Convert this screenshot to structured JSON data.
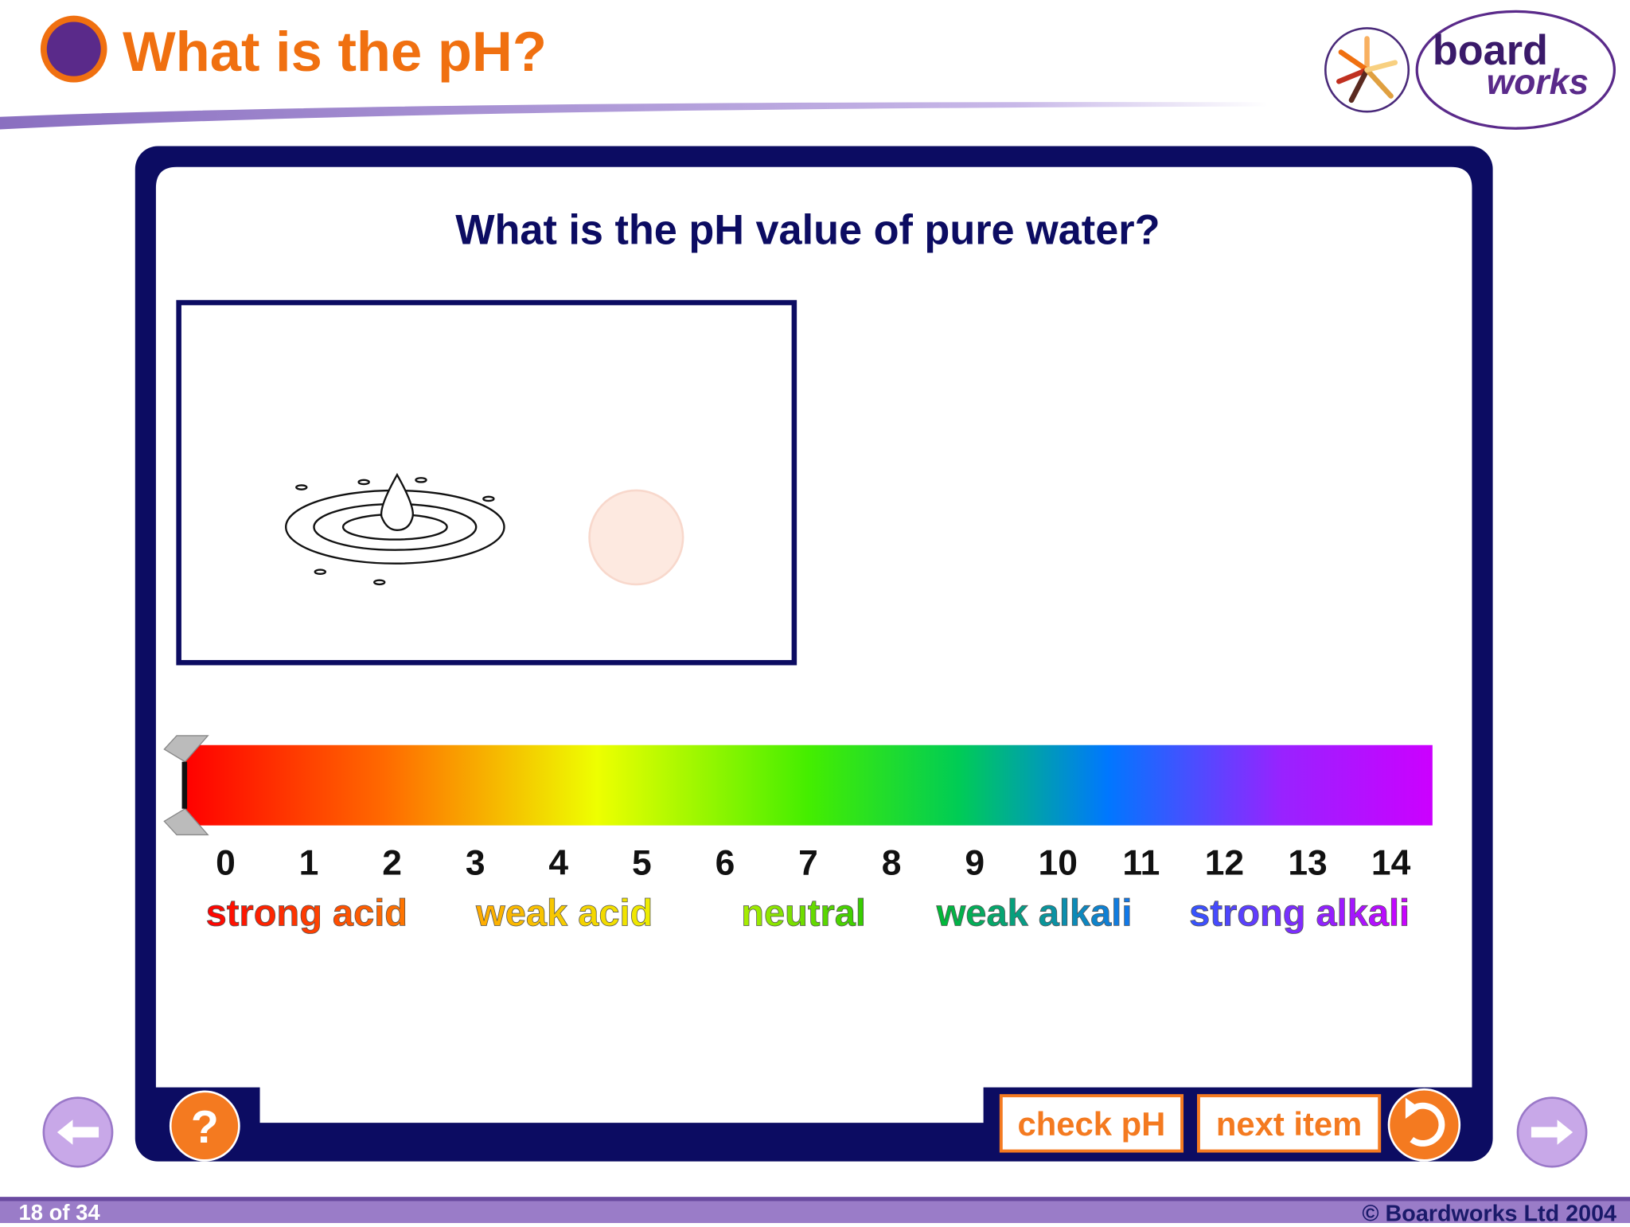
{
  "header": {
    "title": "What is the pH?",
    "logo": {
      "line1": "board",
      "line2": "works"
    }
  },
  "activity": {
    "question": "What is the pH value of pure water?",
    "scale": {
      "numbers": [
        0,
        1,
        2,
        3,
        4,
        5,
        6,
        7,
        8,
        9,
        10,
        11,
        12,
        13,
        14
      ],
      "labels": [
        "strong acid",
        "weak acid",
        "neutral",
        "weak alkali",
        "strong alkali"
      ]
    },
    "buttons": {
      "help": "?",
      "check": "check pH",
      "next": "next item"
    }
  },
  "footer": {
    "page": "18 of 34",
    "copyright": "© Boardworks Ltd 2004"
  }
}
